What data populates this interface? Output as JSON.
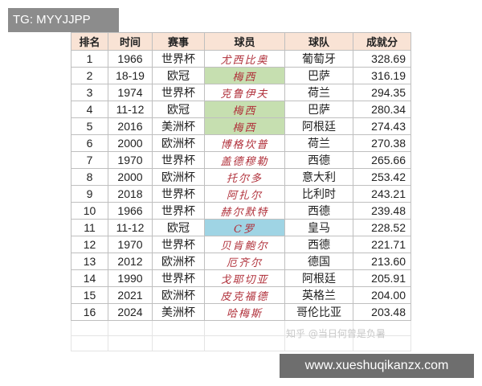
{
  "watermark": "TG: MYYJJPP",
  "table": {
    "header": [
      "排名",
      "时间",
      "赛事",
      "球员",
      "球队",
      "成就分"
    ],
    "rows": [
      [
        "1",
        "1966",
        "世界杯",
        "尤西比奥",
        "葡萄牙",
        "328.69"
      ],
      [
        "2",
        "18-19",
        "欧冠",
        "梅西",
        "巴萨",
        "316.19"
      ],
      [
        "3",
        "1974",
        "世界杯",
        "克鲁伊夫",
        "荷兰",
        "294.35"
      ],
      [
        "4",
        "11-12",
        "欧冠",
        "梅西",
        "巴萨",
        "280.34"
      ],
      [
        "5",
        "2016",
        "美洲杯",
        "梅西",
        "阿根廷",
        "274.43"
      ],
      [
        "6",
        "2000",
        "欧洲杯",
        "博格坎普",
        "荷兰",
        "270.38"
      ],
      [
        "7",
        "1970",
        "世界杯",
        "盖德穆勒",
        "西德",
        "265.66"
      ],
      [
        "8",
        "2000",
        "欧洲杯",
        "托尔多",
        "意大利",
        "253.42"
      ],
      [
        "9",
        "2018",
        "世界杯",
        "阿扎尔",
        "比利时",
        "243.21"
      ],
      [
        "10",
        "1966",
        "世界杯",
        "赫尔默特",
        "西德",
        "239.48"
      ],
      [
        "11",
        "11-12",
        "欧冠",
        "C罗",
        "皇马",
        "228.52"
      ],
      [
        "12",
        "1970",
        "世界杯",
        "贝肯鲍尔",
        "西德",
        "221.71"
      ],
      [
        "13",
        "2012",
        "欧洲杯",
        "厄齐尔",
        "德国",
        "213.60"
      ],
      [
        "14",
        "1990",
        "世界杯",
        "戈耶切亚",
        "阿根廷",
        "205.91"
      ],
      [
        "15",
        "2021",
        "欧洲杯",
        "皮克福德",
        "英格兰",
        "204.00"
      ],
      [
        "16",
        "2024",
        "美洲杯",
        "哈梅斯",
        "哥伦比亚",
        "203.48"
      ]
    ]
  },
  "source_watermark": "知乎 @当日何曾是负暑",
  "site": "www.xueshuqikanzx.com"
}
